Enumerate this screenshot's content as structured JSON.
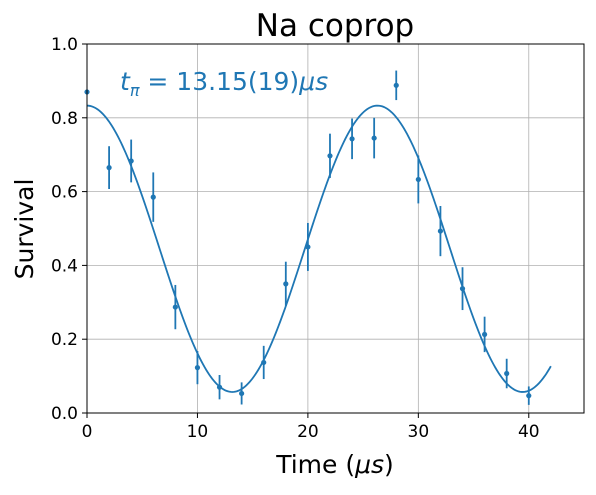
{
  "chart_data": {
    "type": "scatter",
    "title": "Na coprop",
    "xlabel_prefix": "Time (",
    "xlabel_unit": "μs",
    "xlabel_suffix": ")",
    "ylabel": "Survival",
    "annotation": {
      "symbol": "t",
      "subscript": "π",
      "value": " = 13.15(19)",
      "unit": "μs"
    },
    "xlim": [
      0,
      45
    ],
    "ylim": [
      0.0,
      1.0
    ],
    "xticks": [
      0,
      10,
      20,
      30,
      40
    ],
    "xtick_labels": [
      "0",
      "10",
      "20",
      "30",
      "40"
    ],
    "yticks": [
      0.0,
      0.2,
      0.4,
      0.6,
      0.8,
      1.0
    ],
    "ytick_labels": [
      "0.0",
      "0.2",
      "0.4",
      "0.6",
      "0.8",
      "1.0"
    ],
    "grid": true,
    "color": "#1f77b4",
    "points": [
      {
        "x": 0,
        "y": 0.87,
        "err": 0.0
      },
      {
        "x": 2,
        "y": 0.665,
        "err": 0.058
      },
      {
        "x": 4,
        "y": 0.683,
        "err": 0.058
      },
      {
        "x": 6,
        "y": 0.585,
        "err": 0.067
      },
      {
        "x": 8,
        "y": 0.287,
        "err": 0.06
      },
      {
        "x": 10,
        "y": 0.123,
        "err": 0.045
      },
      {
        "x": 12,
        "y": 0.07,
        "err": 0.033
      },
      {
        "x": 14,
        "y": 0.053,
        "err": 0.03
      },
      {
        "x": 16,
        "y": 0.137,
        "err": 0.045
      },
      {
        "x": 18,
        "y": 0.35,
        "err": 0.06
      },
      {
        "x": 20,
        "y": 0.45,
        "err": 0.065
      },
      {
        "x": 22,
        "y": 0.697,
        "err": 0.06
      },
      {
        "x": 24,
        "y": 0.743,
        "err": 0.055
      },
      {
        "x": 26,
        "y": 0.745,
        "err": 0.055
      },
      {
        "x": 28,
        "y": 0.888,
        "err": 0.04
      },
      {
        "x": 30,
        "y": 0.633,
        "err": 0.065
      },
      {
        "x": 32,
        "y": 0.493,
        "err": 0.068
      },
      {
        "x": 34,
        "y": 0.337,
        "err": 0.058
      },
      {
        "x": 36,
        "y": 0.213,
        "err": 0.048
      },
      {
        "x": 38,
        "y": 0.107,
        "err": 0.04
      },
      {
        "x": 40,
        "y": 0.047,
        "err": 0.025
      }
    ],
    "fit": {
      "x_range": [
        0,
        42
      ],
      "offset": 0.445,
      "amplitude": 0.388,
      "period": 26.3,
      "phase_x": 26.3
    }
  }
}
